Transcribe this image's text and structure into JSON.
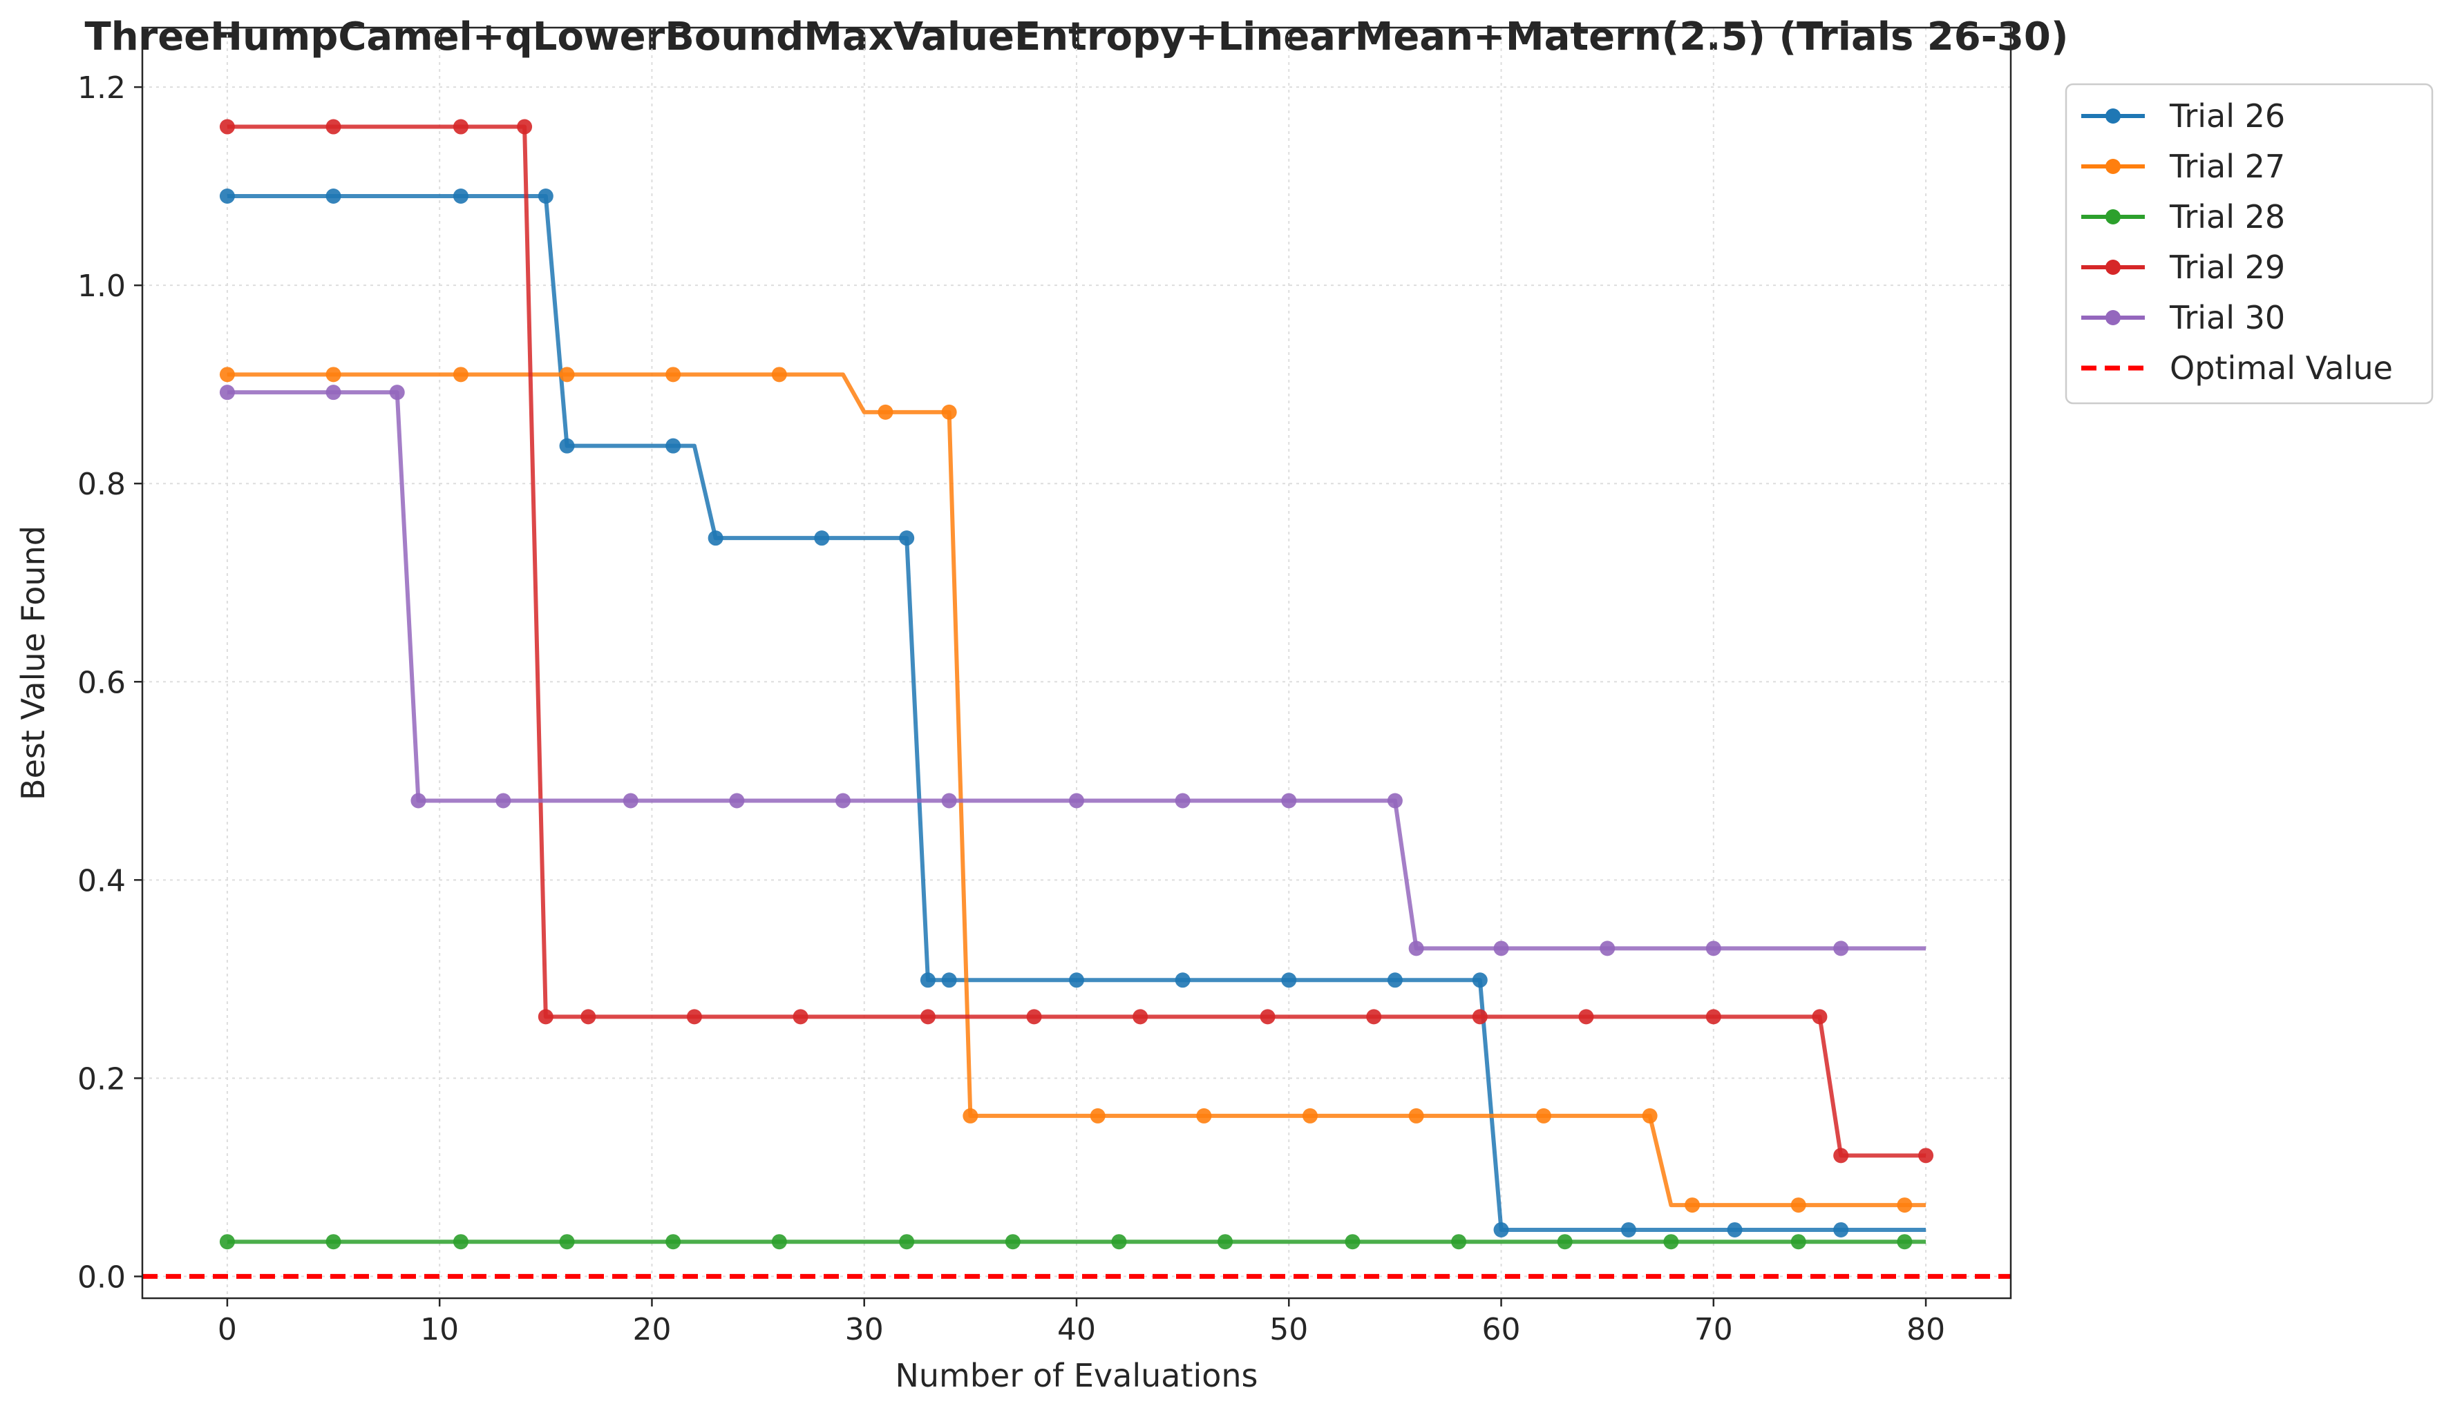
{
  "chart_data": {
    "type": "line",
    "title": "ThreeHumpCamel+qLowerBoundMaxValueEntropy+LinearMean+Matern(2.5) (Trials 26-30)",
    "xlabel": "Number of Evaluations",
    "ylabel": "Best Value Found",
    "xlim": [
      -4,
      84
    ],
    "ylim": [
      -0.022,
      1.26
    ],
    "xticks": [
      0,
      10,
      20,
      30,
      40,
      50,
      60,
      70,
      80
    ],
    "yticks": [
      0.0,
      0.2,
      0.4,
      0.6,
      0.8,
      1.0,
      1.2
    ],
    "ytick_labels": [
      "0.0",
      "0.2",
      "0.4",
      "0.6",
      "0.8",
      "1.0",
      "1.2"
    ],
    "grid": true,
    "legend_position": "outside-top-right",
    "series": [
      {
        "name": "Trial 26",
        "color": "#1f77b4",
        "steps": [
          [
            0,
            1.09
          ],
          [
            16,
            0.838
          ],
          [
            23,
            0.745
          ],
          [
            33,
            0.299
          ],
          [
            60,
            0.047
          ]
        ],
        "markers": [
          0,
          5,
          11,
          15,
          16,
          21,
          23,
          28,
          32,
          33,
          34,
          40,
          45,
          50,
          55,
          59,
          60,
          66,
          71,
          76
        ]
      },
      {
        "name": "Trial 27",
        "color": "#ff7f0e",
        "steps": [
          [
            0,
            0.91
          ],
          [
            30,
            0.872
          ],
          [
            35,
            0.162
          ],
          [
            68,
            0.072
          ]
        ],
        "markers": [
          0,
          5,
          11,
          16,
          21,
          26,
          31,
          34,
          35,
          41,
          46,
          51,
          56,
          62,
          67,
          69,
          74,
          79
        ]
      },
      {
        "name": "Trial 28",
        "color": "#2ca02c",
        "steps": [
          [
            0,
            0.035
          ]
        ],
        "markers": [
          0,
          5,
          11,
          16,
          21,
          26,
          32,
          37,
          42,
          47,
          53,
          58,
          63,
          68,
          74,
          79
        ]
      },
      {
        "name": "Trial 29",
        "color": "#d62728",
        "steps": [
          [
            0,
            1.16
          ],
          [
            15,
            0.262
          ],
          [
            76,
            0.122
          ]
        ],
        "markers": [
          0,
          5,
          11,
          14,
          15,
          17,
          22,
          27,
          33,
          38,
          43,
          49,
          54,
          59,
          64,
          70,
          75,
          76,
          80
        ]
      },
      {
        "name": "Trial 30",
        "color": "#9467bd",
        "steps": [
          [
            0,
            0.892
          ],
          [
            9,
            0.48
          ],
          [
            56,
            0.331
          ]
        ],
        "markers": [
          0,
          5,
          8,
          9,
          13,
          19,
          24,
          29,
          34,
          40,
          45,
          50,
          55,
          56,
          60,
          65,
          70,
          76
        ]
      }
    ],
    "reference_line": {
      "name": "Optimal Value",
      "y": 0.0,
      "color": "#ff0000",
      "style": "dashed"
    }
  }
}
